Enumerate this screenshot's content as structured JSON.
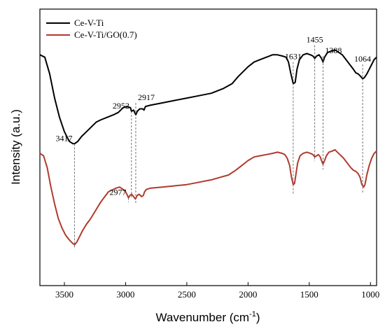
{
  "chart_data": {
    "type": "line",
    "xlabel": "Wavenumber (cm",
    "xlabel_sup": "-1",
    "xlabel_close": ")",
    "ylabel": "Intensity (a.u.)",
    "xlim": [
      3700,
      950
    ],
    "x_reversed": true,
    "x_ticks": [
      3500,
      3000,
      2500,
      2000,
      1500,
      1000
    ],
    "y_ticks_shown": false,
    "grid": false,
    "legend_position": "top-left",
    "series": [
      {
        "name": "Ce-V-Ti",
        "color": "#000000",
        "points": [
          [
            3700,
            0.86
          ],
          [
            3660,
            0.85
          ],
          [
            3620,
            0.78
          ],
          [
            3580,
            0.68
          ],
          [
            3540,
            0.6
          ],
          [
            3500,
            0.54
          ],
          [
            3460,
            0.5
          ],
          [
            3430,
            0.49
          ],
          [
            3417,
            0.49
          ],
          [
            3390,
            0.5
          ],
          [
            3360,
            0.52
          ],
          [
            3320,
            0.54
          ],
          [
            3280,
            0.56
          ],
          [
            3240,
            0.58
          ],
          [
            3200,
            0.59
          ],
          [
            3150,
            0.6
          ],
          [
            3100,
            0.61
          ],
          [
            3060,
            0.62
          ],
          [
            3020,
            0.64
          ],
          [
            2990,
            0.645
          ],
          [
            2960,
            0.64
          ],
          [
            2952,
            0.625
          ],
          [
            2935,
            0.63
          ],
          [
            2917,
            0.61
          ],
          [
            2905,
            0.625
          ],
          [
            2885,
            0.635
          ],
          [
            2860,
            0.635
          ],
          [
            2850,
            0.63
          ],
          [
            2838,
            0.645
          ],
          [
            2800,
            0.65
          ],
          [
            2700,
            0.66
          ],
          [
            2600,
            0.67
          ],
          [
            2500,
            0.68
          ],
          [
            2400,
            0.69
          ],
          [
            2300,
            0.7
          ],
          [
            2200,
            0.72
          ],
          [
            2130,
            0.74
          ],
          [
            2080,
            0.77
          ],
          [
            2000,
            0.81
          ],
          [
            1950,
            0.83
          ],
          [
            1900,
            0.84
          ],
          [
            1850,
            0.85
          ],
          [
            1800,
            0.86
          ],
          [
            1760,
            0.86
          ],
          [
            1720,
            0.855
          ],
          [
            1690,
            0.85
          ],
          [
            1670,
            0.83
          ],
          [
            1650,
            0.78
          ],
          [
            1631,
            0.74
          ],
          [
            1615,
            0.745
          ],
          [
            1600,
            0.8
          ],
          [
            1580,
            0.84
          ],
          [
            1550,
            0.86
          ],
          [
            1520,
            0.865
          ],
          [
            1490,
            0.86
          ],
          [
            1470,
            0.855
          ],
          [
            1455,
            0.845
          ],
          [
            1440,
            0.855
          ],
          [
            1420,
            0.86
          ],
          [
            1400,
            0.845
          ],
          [
            1388,
            0.83
          ],
          [
            1375,
            0.85
          ],
          [
            1350,
            0.87
          ],
          [
            1320,
            0.875
          ],
          [
            1290,
            0.88
          ],
          [
            1260,
            0.87
          ],
          [
            1230,
            0.86
          ],
          [
            1200,
            0.84
          ],
          [
            1170,
            0.82
          ],
          [
            1140,
            0.8
          ],
          [
            1120,
            0.785
          ],
          [
            1100,
            0.78
          ],
          [
            1080,
            0.77
          ],
          [
            1064,
            0.76
          ],
          [
            1050,
            0.765
          ],
          [
            1030,
            0.78
          ],
          [
            1010,
            0.8
          ],
          [
            990,
            0.82
          ],
          [
            970,
            0.84
          ],
          [
            950,
            0.85
          ]
        ]
      },
      {
        "name": "Ce-V-Ti/GO(0.7)",
        "color": "#b03a2e",
        "points": [
          [
            3700,
            0.45
          ],
          [
            3670,
            0.44
          ],
          [
            3640,
            0.39
          ],
          [
            3610,
            0.31
          ],
          [
            3580,
            0.24
          ],
          [
            3550,
            0.18
          ],
          [
            3520,
            0.14
          ],
          [
            3490,
            0.11
          ],
          [
            3460,
            0.09
          ],
          [
            3430,
            0.075
          ],
          [
            3417,
            0.07
          ],
          [
            3400,
            0.08
          ],
          [
            3380,
            0.1
          ],
          [
            3350,
            0.13
          ],
          [
            3320,
            0.155
          ],
          [
            3290,
            0.175
          ],
          [
            3260,
            0.2
          ],
          [
            3230,
            0.225
          ],
          [
            3200,
            0.25
          ],
          [
            3170,
            0.27
          ],
          [
            3140,
            0.29
          ],
          [
            3100,
            0.3
          ],
          [
            3080,
            0.305
          ],
          [
            3050,
            0.31
          ],
          [
            3020,
            0.3
          ],
          [
            3000,
            0.29
          ],
          [
            2985,
            0.275
          ],
          [
            2977,
            0.265
          ],
          [
            2965,
            0.275
          ],
          [
            2950,
            0.28
          ],
          [
            2935,
            0.27
          ],
          [
            2920,
            0.26
          ],
          [
            2905,
            0.275
          ],
          [
            2890,
            0.28
          ],
          [
            2870,
            0.27
          ],
          [
            2855,
            0.275
          ],
          [
            2845,
            0.29
          ],
          [
            2830,
            0.3
          ],
          [
            2800,
            0.305
          ],
          [
            2700,
            0.31
          ],
          [
            2600,
            0.315
          ],
          [
            2500,
            0.32
          ],
          [
            2400,
            0.33
          ],
          [
            2300,
            0.34
          ],
          [
            2230,
            0.35
          ],
          [
            2160,
            0.36
          ],
          [
            2100,
            0.38
          ],
          [
            2050,
            0.4
          ],
          [
            2000,
            0.42
          ],
          [
            1950,
            0.435
          ],
          [
            1900,
            0.44
          ],
          [
            1850,
            0.445
          ],
          [
            1800,
            0.45
          ],
          [
            1760,
            0.455
          ],
          [
            1720,
            0.45
          ],
          [
            1700,
            0.445
          ],
          [
            1680,
            0.43
          ],
          [
            1660,
            0.4
          ],
          [
            1645,
            0.35
          ],
          [
            1631,
            0.32
          ],
          [
            1620,
            0.325
          ],
          [
            1610,
            0.36
          ],
          [
            1595,
            0.41
          ],
          [
            1575,
            0.44
          ],
          [
            1550,
            0.45
          ],
          [
            1520,
            0.455
          ],
          [
            1490,
            0.45
          ],
          [
            1470,
            0.445
          ],
          [
            1455,
            0.435
          ],
          [
            1440,
            0.44
          ],
          [
            1425,
            0.445
          ],
          [
            1410,
            0.435
          ],
          [
            1400,
            0.42
          ],
          [
            1388,
            0.405
          ],
          [
            1375,
            0.42
          ],
          [
            1360,
            0.44
          ],
          [
            1340,
            0.455
          ],
          [
            1310,
            0.46
          ],
          [
            1290,
            0.465
          ],
          [
            1270,
            0.455
          ],
          [
            1250,
            0.445
          ],
          [
            1220,
            0.43
          ],
          [
            1190,
            0.41
          ],
          [
            1160,
            0.39
          ],
          [
            1140,
            0.38
          ],
          [
            1120,
            0.375
          ],
          [
            1100,
            0.365
          ],
          [
            1085,
            0.35
          ],
          [
            1070,
            0.32
          ],
          [
            1055,
            0.31
          ],
          [
            1045,
            0.32
          ],
          [
            1030,
            0.36
          ],
          [
            1010,
            0.4
          ],
          [
            990,
            0.43
          ],
          [
            970,
            0.45
          ],
          [
            950,
            0.46
          ]
        ]
      }
    ],
    "annotations": [
      {
        "label": "3417",
        "x": 3417,
        "series": 0,
        "y_label": 0.49,
        "y_bottom": 0.07,
        "label_side": "left"
      },
      {
        "label": "2952",
        "x": 2952,
        "series": 0,
        "y_label": 0.625,
        "y_bottom": 0.28,
        "label_side": "left"
      },
      {
        "label": "2917",
        "x": 2917,
        "series": 0,
        "y_label": 0.66,
        "y_bottom": 0.26,
        "label_side": "right"
      },
      {
        "label": "2977",
        "x": 2977,
        "series": 1,
        "y_label": 0.265,
        "y_bottom": 0.265,
        "label_side": "left"
      },
      {
        "label": "1631",
        "x": 1631,
        "series": 0,
        "y_label": 0.83,
        "y_bottom": 0.3,
        "label_side": "center"
      },
      {
        "label": "1455",
        "x": 1455,
        "series": 0,
        "y_label": 0.9,
        "y_bottom": 0.435,
        "label_side": "center"
      },
      {
        "label": "1388",
        "x": 1388,
        "series": 0,
        "y_label": 0.855,
        "y_bottom": 0.4,
        "label_side": "right"
      },
      {
        "label": "1064",
        "x": 1064,
        "series": 0,
        "y_label": 0.82,
        "y_bottom": 0.3,
        "label_side": "center"
      }
    ]
  }
}
